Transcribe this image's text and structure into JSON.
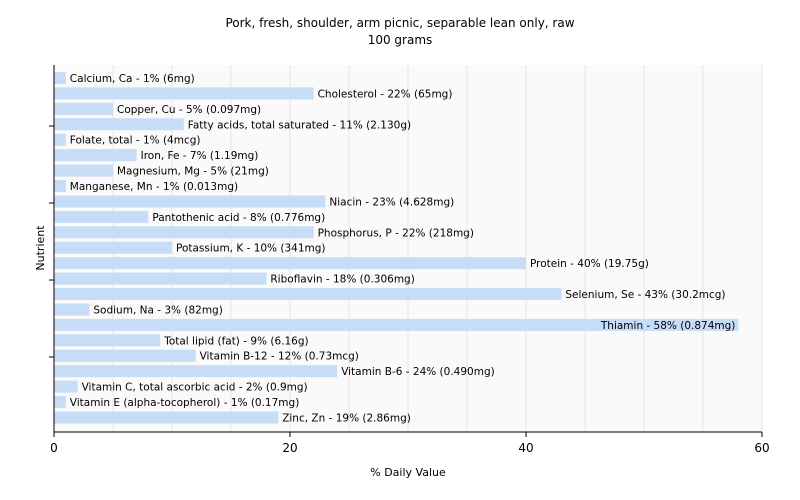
{
  "chart_data": {
    "type": "bar",
    "orientation": "horizontal",
    "title": "Pork, fresh, shoulder, arm picnic, separable lean only, raw",
    "subtitle": "100 grams",
    "xlabel": "% Daily Value",
    "ylabel": "Nutrient",
    "xlim": [
      0,
      60
    ],
    "xticks": [
      "0",
      "20",
      "40",
      "60"
    ],
    "grid": "vertical",
    "bar_color": "#c6dcf7",
    "categories": [
      "Calcium, Ca",
      "Cholesterol",
      "Copper, Cu",
      "Fatty acids, total saturated",
      "Folate, total",
      "Iron, Fe",
      "Magnesium, Mg",
      "Manganese, Mn",
      "Niacin",
      "Pantothenic acid",
      "Phosphorus, P",
      "Potassium, K",
      "Protein",
      "Riboflavin",
      "Selenium, Se",
      "Sodium, Na",
      "Thiamin",
      "Total lipid (fat)",
      "Vitamin B-12",
      "Vitamin B-6",
      "Vitamin C, total ascorbic acid",
      "Vitamin E (alpha-tocopherol)",
      "Zinc, Zn"
    ],
    "values": [
      1,
      22,
      5,
      11,
      1,
      7,
      5,
      1,
      23,
      8,
      22,
      10,
      40,
      18,
      43,
      3,
      58,
      9,
      12,
      24,
      2,
      1,
      19
    ],
    "labels": [
      "Calcium, Ca - 1% (6mg)",
      "Cholesterol - 22% (65mg)",
      "Copper, Cu - 5% (0.097mg)",
      "Fatty acids, total saturated - 11% (2.130g)",
      "Folate, total - 1% (4mcg)",
      "Iron, Fe - 7% (1.19mg)",
      "Magnesium, Mg - 5% (21mg)",
      "Manganese, Mn - 1% (0.013mg)",
      "Niacin - 23% (4.628mg)",
      "Pantothenic acid - 8% (0.776mg)",
      "Phosphorus, P - 22% (218mg)",
      "Potassium, K - 10% (341mg)",
      "Protein - 40% (19.75g)",
      "Riboflavin - 18% (0.306mg)",
      "Selenium, Se - 43% (30.2mcg)",
      "Sodium, Na - 3% (82mg)",
      "Thiamin - 58% (0.874mg)",
      "Total lipid (fat) - 9% (6.16g)",
      "Vitamin B-12 - 12% (0.73mcg)",
      "Vitamin B-6 - 24% (0.490mg)",
      "Vitamin C, total ascorbic acid - 2% (0.9mg)",
      "Vitamin E (alpha-tocopherol) - 1% (0.17mg)",
      "Zinc, Zn - 19% (2.86mg)"
    ]
  }
}
